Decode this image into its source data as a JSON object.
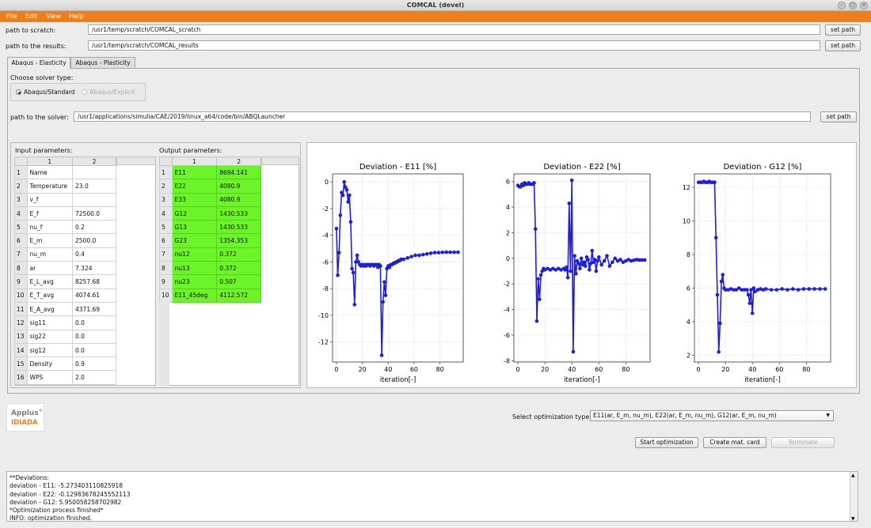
{
  "window": {
    "title": "COMCAL (devel)"
  },
  "menu": [
    "File",
    "Edit",
    "View",
    "Help"
  ],
  "paths": {
    "scratch_label": "path to scratch:",
    "scratch_value": "/usr1/temp/scratch/COMCAL_scratch",
    "results_label": "path to the results:",
    "results_value": "/usr1/temp/scratch/COMCAL_results",
    "set_path_label": "set path"
  },
  "tabs": [
    "Abaqus - Elasticity",
    "Abaqus - Plasticity"
  ],
  "solver": {
    "choose_label": "Choose solver type:",
    "options": [
      "Abaqus/Standard",
      "Abaqus/Explicit"
    ],
    "path_label": "path to the solver:",
    "path_value": "/usr1/applications/simulia/CAE/2019/linux_a64/code/bin/ABQLauncher"
  },
  "input_params": {
    "label": "Input parameters:",
    "columns": [
      "1",
      "2"
    ],
    "rows": [
      [
        "1",
        "Name",
        ""
      ],
      [
        "2",
        "Temperature",
        "23.0"
      ],
      [
        "3",
        "v_f",
        ""
      ],
      [
        "4",
        "E_f",
        "72500.0"
      ],
      [
        "5",
        "nu_f",
        "0.2"
      ],
      [
        "6",
        "E_m",
        "2500.0"
      ],
      [
        "7",
        "nu_m",
        "0.4"
      ],
      [
        "8",
        "ar",
        "7.324"
      ],
      [
        "9",
        "E_L_avg",
        "8257.68"
      ],
      [
        "10",
        "E_T_avg",
        "4074.61"
      ],
      [
        "11",
        "E_A_avg",
        "4371.69"
      ],
      [
        "12",
        "sig11",
        "0.0"
      ],
      [
        "13",
        "sig22",
        "0.0"
      ],
      [
        "14",
        "sig12",
        "0.0"
      ],
      [
        "15",
        "Density",
        "0.9"
      ],
      [
        "16",
        "WPS",
        "2.0"
      ]
    ]
  },
  "output_params": {
    "label": "Output parameters:",
    "columns": [
      "1",
      "2"
    ],
    "rows": [
      [
        "1",
        "E11",
        "8694.141"
      ],
      [
        "2",
        "E22",
        "4080.9"
      ],
      [
        "3",
        "E33",
        "4080.9"
      ],
      [
        "4",
        "G12",
        "1430.533"
      ],
      [
        "5",
        "G13",
        "1430.533"
      ],
      [
        "6",
        "G23",
        "1354.353"
      ],
      [
        "7",
        "nu12",
        "0.372"
      ],
      [
        "8",
        "nu13",
        "0.372"
      ],
      [
        "9",
        "nu23",
        "0.507"
      ],
      [
        "10",
        "E11_45deg",
        "4112.572"
      ]
    ]
  },
  "colors": {
    "accent": "#f07c1a",
    "plot_line": "#1f1fd6",
    "output_cell": "#6cf42b"
  },
  "chart_data": [
    {
      "type": "line",
      "title": "Deviation - E11 [%]",
      "xlabel": "iteration[-]",
      "ylabel": "",
      "xlim": [
        -3,
        98
      ],
      "ylim": [
        -13.5,
        0.6
      ],
      "xticks": [
        0,
        20,
        40,
        60,
        80
      ],
      "yticks": [
        0,
        -2,
        -4,
        -6,
        -8,
        -10,
        -12
      ],
      "x": [
        0,
        1,
        2,
        3,
        4,
        5,
        6,
        7,
        8,
        9,
        10,
        11,
        12,
        13,
        14,
        15,
        16,
        17,
        18,
        19,
        20,
        21,
        22,
        23,
        24,
        25,
        26,
        27,
        28,
        29,
        30,
        31,
        32,
        33,
        34,
        35,
        36,
        37,
        38,
        39,
        40,
        41,
        42,
        43,
        44,
        45,
        46,
        47,
        48,
        49,
        50,
        52,
        55,
        58,
        61,
        64,
        67,
        70,
        73,
        76,
        79,
        82,
        85,
        88,
        91,
        94
      ],
      "y": [
        -3.5,
        -7.0,
        -5.3,
        -2.5,
        -0.8,
        -1.0,
        0.0,
        -0.4,
        -0.6,
        -1.5,
        -1.0,
        -3.0,
        -6.5,
        -6.8,
        -9.2,
        -6.0,
        -5.5,
        -6.0,
        -6.2,
        -6.3,
        -6.2,
        -6.3,
        -6.2,
        -6.3,
        -6.2,
        -6.2,
        -6.3,
        -6.2,
        -6.2,
        -6.3,
        -6.2,
        -6.2,
        -6.4,
        -6.2,
        -6.3,
        -13.0,
        -9.0,
        -7.5,
        -8.5,
        -6.5,
        -6.3,
        -6.4,
        -6.2,
        -6.2,
        -6.1,
        -6.1,
        -6.0,
        -6.0,
        -5.9,
        -5.9,
        -5.8,
        -5.8,
        -5.7,
        -5.6,
        -5.5,
        -5.5,
        -5.45,
        -5.4,
        -5.35,
        -5.3,
        -5.3,
        -5.28,
        -5.27,
        -5.27,
        -5.27,
        -5.27
      ]
    },
    {
      "type": "line",
      "title": "Deviation - E22 [%]",
      "xlabel": "iteration[-]",
      "ylabel": "",
      "xlim": [
        -3,
        98
      ],
      "ylim": [
        -8.1,
        6.6
      ],
      "xticks": [
        0,
        20,
        40,
        60,
        80
      ],
      "yticks": [
        6,
        4,
        2,
        0,
        -2,
        -4,
        -6,
        -8
      ],
      "x": [
        0,
        1,
        2,
        3,
        4,
        5,
        6,
        7,
        8,
        9,
        10,
        11,
        12,
        13,
        14,
        15,
        16,
        17,
        18,
        19,
        20,
        22,
        24,
        26,
        28,
        30,
        32,
        34,
        35,
        36,
        37,
        38,
        39,
        40,
        41,
        42,
        43,
        44,
        45,
        46,
        47,
        48,
        49,
        50,
        51,
        52,
        53,
        54,
        55,
        56,
        57,
        58,
        59,
        60,
        62,
        64,
        66,
        68,
        70,
        72,
        74,
        76,
        78,
        80,
        82,
        84,
        86,
        88,
        90,
        92,
        94
      ],
      "y": [
        5.7,
        5.6,
        5.6,
        5.8,
        5.7,
        5.9,
        5.8,
        5.8,
        5.9,
        5.8,
        5.8,
        5.8,
        5.9,
        2.3,
        -4.9,
        -1.6,
        -3.2,
        -1.3,
        -1.0,
        -0.8,
        -0.9,
        -0.8,
        -0.9,
        -0.8,
        -0.9,
        -0.8,
        -0.9,
        -0.8,
        -0.9,
        -0.7,
        -1.5,
        4.3,
        -1.0,
        6.1,
        -7.3,
        0.2,
        -1.2,
        -0.2,
        -0.4,
        -0.8,
        0.0,
        -0.5,
        -0.3,
        -0.6,
        0.1,
        -0.1,
        -0.9,
        -0.4,
        0.6,
        -0.3,
        -0.1,
        -1.0,
        -0.2,
        0.1,
        -0.5,
        -0.2,
        0.2,
        -0.6,
        -0.3,
        0.0,
        -0.2,
        -0.1,
        -0.3,
        -0.2,
        -0.1,
        -0.2,
        -0.15,
        -0.1,
        -0.13,
        -0.13,
        -0.13
      ]
    },
    {
      "type": "line",
      "title": "Deviation - G12 [%]",
      "xlabel": "iteration[-]",
      "ylabel": "",
      "xlim": [
        -3,
        98
      ],
      "ylim": [
        1.6,
        12.8
      ],
      "xticks": [
        0,
        20,
        40,
        60,
        80
      ],
      "yticks": [
        12,
        10,
        8,
        6,
        4,
        2
      ],
      "x": [
        0,
        1,
        2,
        3,
        4,
        5,
        6,
        7,
        8,
        9,
        10,
        11,
        12,
        13,
        14,
        15,
        16,
        17,
        18,
        19,
        20,
        22,
        24,
        26,
        28,
        30,
        32,
        34,
        36,
        37,
        38,
        39,
        40,
        41,
        42,
        44,
        46,
        48,
        50,
        54,
        58,
        62,
        66,
        70,
        74,
        78,
        82,
        86,
        90,
        94
      ],
      "y": [
        12.3,
        12.3,
        12.3,
        12.3,
        12.35,
        12.3,
        12.3,
        12.3,
        12.35,
        12.3,
        12.3,
        12.3,
        12.3,
        9.0,
        5.6,
        2.2,
        3.9,
        6.4,
        6.8,
        6.0,
        5.9,
        5.9,
        5.95,
        5.9,
        5.9,
        6.0,
        5.9,
        5.9,
        5.9,
        5.6,
        5.1,
        5.9,
        4.5,
        6.0,
        5.8,
        5.9,
        5.95,
        5.9,
        5.95,
        5.9,
        5.9,
        5.95,
        5.9,
        5.95,
        5.9,
        5.95,
        5.95,
        5.95,
        5.95,
        5.95
      ]
    }
  ],
  "optimization": {
    "select_label": "Select optimization type:",
    "selected_value": "E11(ar, E_m, nu_m), E22(ar, E_m, nu_m), G12(ar, E_m, nu_m)",
    "start_label": "Start optimization",
    "create_label": "Create mat. card",
    "terminate_label": "Terminate"
  },
  "logo": {
    "line1": "Applus",
    "sup": "®",
    "line2": "IDIADA"
  },
  "console": {
    "lines": [
      "**Deviations:",
      "deviation - E11: -5.273403110825918",
      "deviation - E22: -0.12983678245552113",
      "deviation - G12: 5.950058258702982",
      "*Optimization process finished*",
      "INFO: optimization finished."
    ]
  }
}
